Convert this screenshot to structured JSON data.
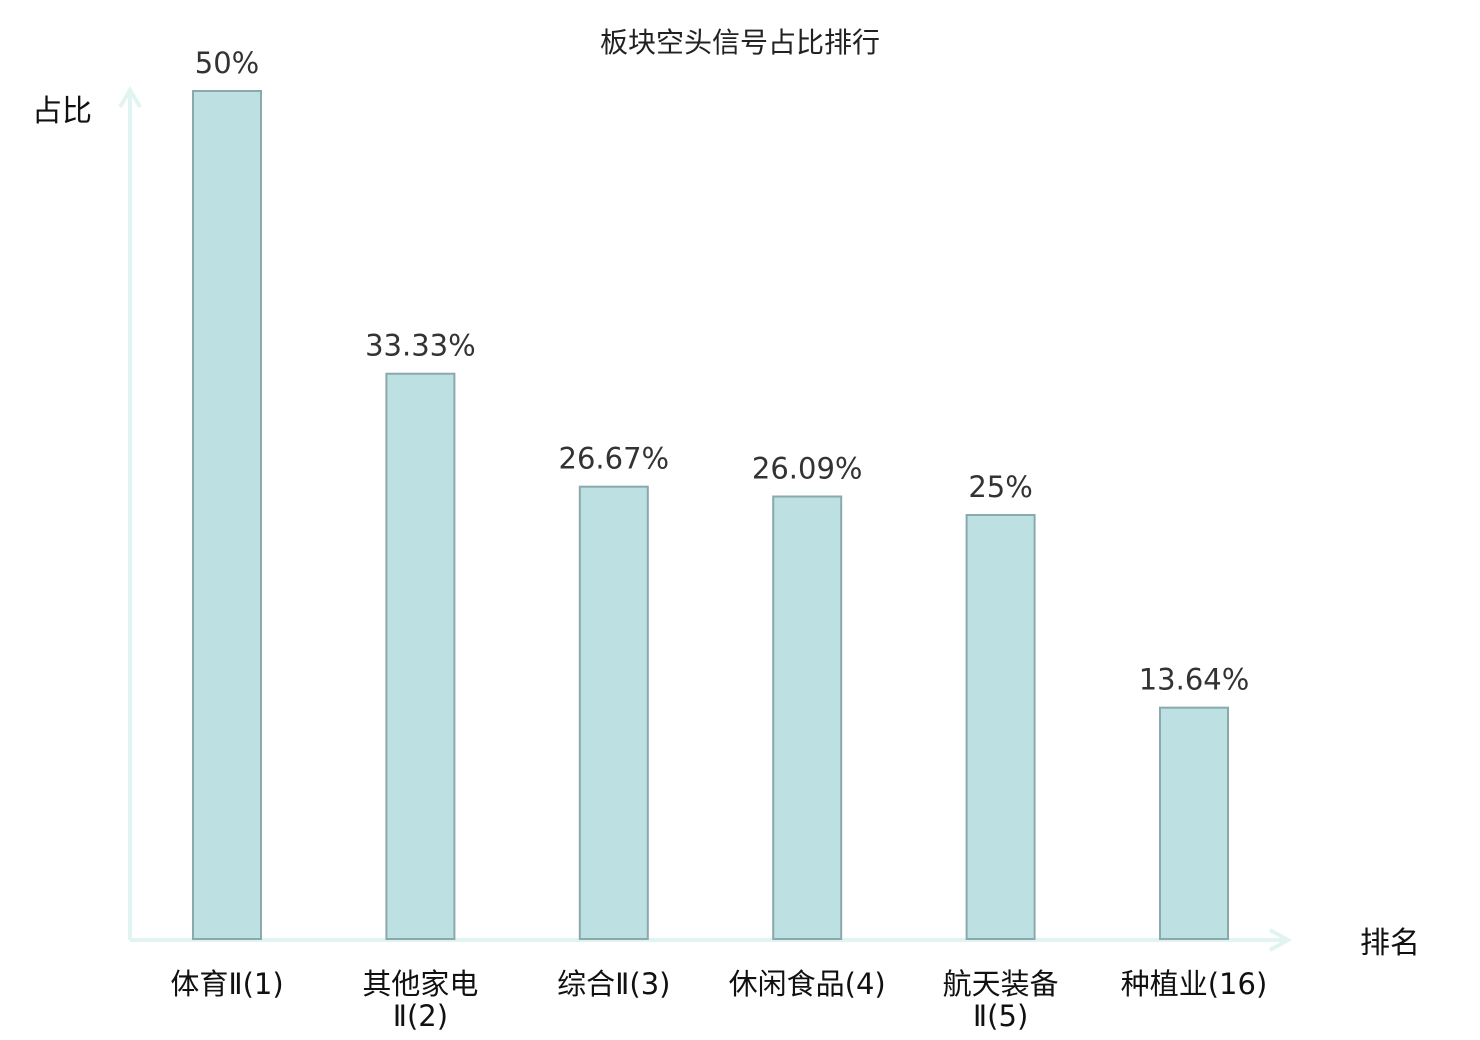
{
  "chart_data": {
    "type": "bar",
    "title": "板块空头信号占比排行",
    "ylabel": "占比",
    "xlabel": "排名",
    "categories": [
      [
        "体育Ⅱ(1)"
      ],
      [
        "其他家电",
        "Ⅱ(2)"
      ],
      [
        "综合Ⅱ(3)"
      ],
      [
        "休闲食品(4)"
      ],
      [
        "航天装备",
        "Ⅱ(5)"
      ],
      [
        "种植业(16)"
      ]
    ],
    "values": [
      50,
      33.33,
      26.67,
      26.09,
      25,
      13.64
    ],
    "value_labels": [
      "50%",
      "33.33%",
      "26.67%",
      "26.09%",
      "25%",
      "13.64%"
    ],
    "highlight_index": 5,
    "ylim": [
      0,
      50
    ],
    "grid": false,
    "colors": {
      "bar_fill": "#bde0e3",
      "bar_stroke": "#8aa9ad",
      "axis": "#e2f4f1",
      "highlight_text": "#e8191b"
    }
  }
}
